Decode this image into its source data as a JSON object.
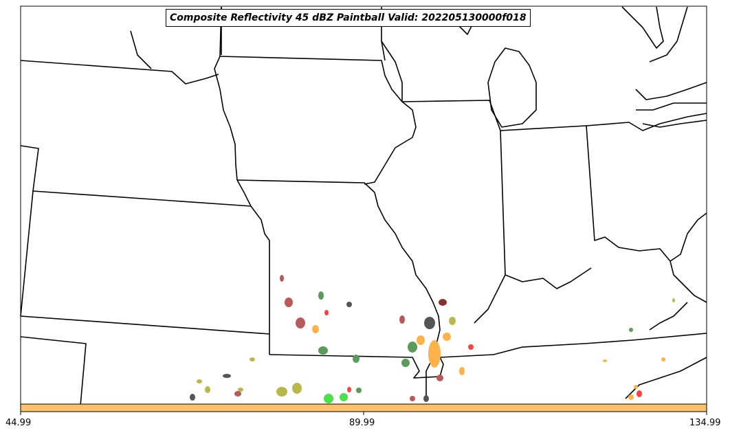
{
  "title": "Composite Reflectivity 45 dBZ Paintball Valid: 202205130000f018",
  "colorbar": {
    "ticks": [
      "44.99",
      "89.99",
      "134.99"
    ],
    "color": "#ffc06a"
  },
  "colors": {
    "boundary": "#000000",
    "background": "#ffffff",
    "member_colors": [
      "#b85a5a",
      "#5a9a5a",
      "#555555",
      "#ffb24a",
      "#ff4040",
      "#b8b84a",
      "#4ae04a",
      "#8b3030"
    ]
  }
}
